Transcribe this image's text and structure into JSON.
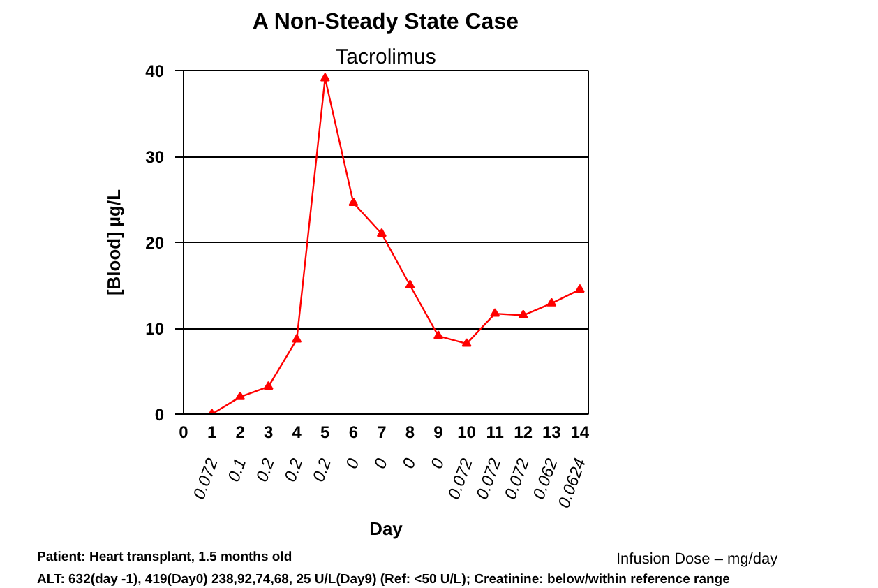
{
  "chart_data": {
    "type": "line",
    "title": "A Non-Steady State Case",
    "subtitle": "Tacrolimus",
    "xlabel": "Day",
    "ylabel": "[Blood] µg/L",
    "x": [
      1,
      2,
      3,
      4,
      5,
      6,
      7,
      8,
      9,
      10,
      11,
      12,
      13,
      14
    ],
    "series": [
      {
        "color": "#ff0000",
        "values": [
          0,
          2.0,
          3.2,
          8.7,
          39.1,
          24.6,
          21.0,
          15.0,
          9.1,
          8.2,
          11.7,
          11.5,
          12.9,
          14.5
        ]
      }
    ],
    "xlim": [
      0,
      14.3
    ],
    "xticks": [
      0,
      1,
      2,
      3,
      4,
      5,
      6,
      7,
      8,
      9,
      10,
      11,
      12,
      13,
      14
    ],
    "ylim": [
      0,
      40
    ],
    "yticks": [
      0,
      10,
      20,
      30,
      40
    ],
    "grid": "y",
    "marker": "triangle",
    "line_style": "solid",
    "annotations": [
      "0.072",
      "0.1",
      "0.2",
      "0.2",
      "0.2",
      "0",
      "0",
      "0",
      "0",
      "0.072",
      "0.072",
      "0.072",
      "0.062",
      "0.0624",
      "Infusion Dose – mg/day",
      "Patient:  Heart transplant, 1.5 months old",
      "ALT: 632(day -1), 419(Day0) 238,92,74,68, 25 U/L(Day9) (Ref: <50 U/L); Creatinine: below/within reference range"
    ]
  }
}
